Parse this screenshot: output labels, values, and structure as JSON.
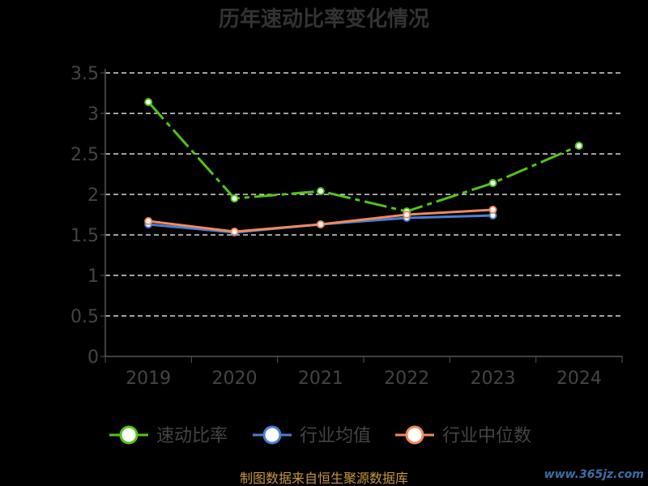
{
  "chart_data": {
    "type": "line",
    "title": "历年速动比率变化情况",
    "categories": [
      "2019",
      "2020",
      "2021",
      "2022",
      "2023",
      "2024"
    ],
    "ylim": [
      0,
      3.5
    ],
    "yticks": [
      "0",
      "0.5",
      "1",
      "1.5",
      "2",
      "2.5",
      "3",
      "3.5"
    ],
    "grid": true,
    "legend_position": "bottom",
    "series": [
      {
        "name": "速动比率",
        "color": "#52c41a",
        "values": [
          3.14,
          1.95,
          2.04,
          1.79,
          2.14,
          2.6
        ]
      },
      {
        "name": "行业均值",
        "color": "#4a7fd4",
        "values": [
          1.63,
          1.53,
          1.63,
          1.71,
          1.74,
          null
        ]
      },
      {
        "name": "行业中位数",
        "color": "#f08a5d",
        "values": [
          1.67,
          1.54,
          1.63,
          1.75,
          1.81,
          null
        ]
      }
    ]
  },
  "footer": {
    "source": "制图数据来自恒生聚源数据库",
    "watermark": "www.365jz.com"
  }
}
